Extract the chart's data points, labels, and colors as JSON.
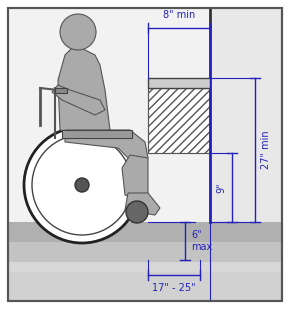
{
  "dim_color": "#2222bb",
  "border_color": "#555555",
  "bg_upper": "#f0f0f0",
  "bg_lower_light": "#d8d8d8",
  "bg_lower_dark": "#888888",
  "wall_color": "#cccccc",
  "person_color": "#aaaaaa",
  "person_edge": "#555555",
  "wheel_color": "#333333",
  "label_8min": "8\" min",
  "label_27min": "27\" min",
  "label_9": "9\"",
  "label_6max": "6\"\nmax",
  "label_17_25": "17\" - 25\"",
  "figw": 2.9,
  "figh": 3.09,
  "dpi": 100
}
